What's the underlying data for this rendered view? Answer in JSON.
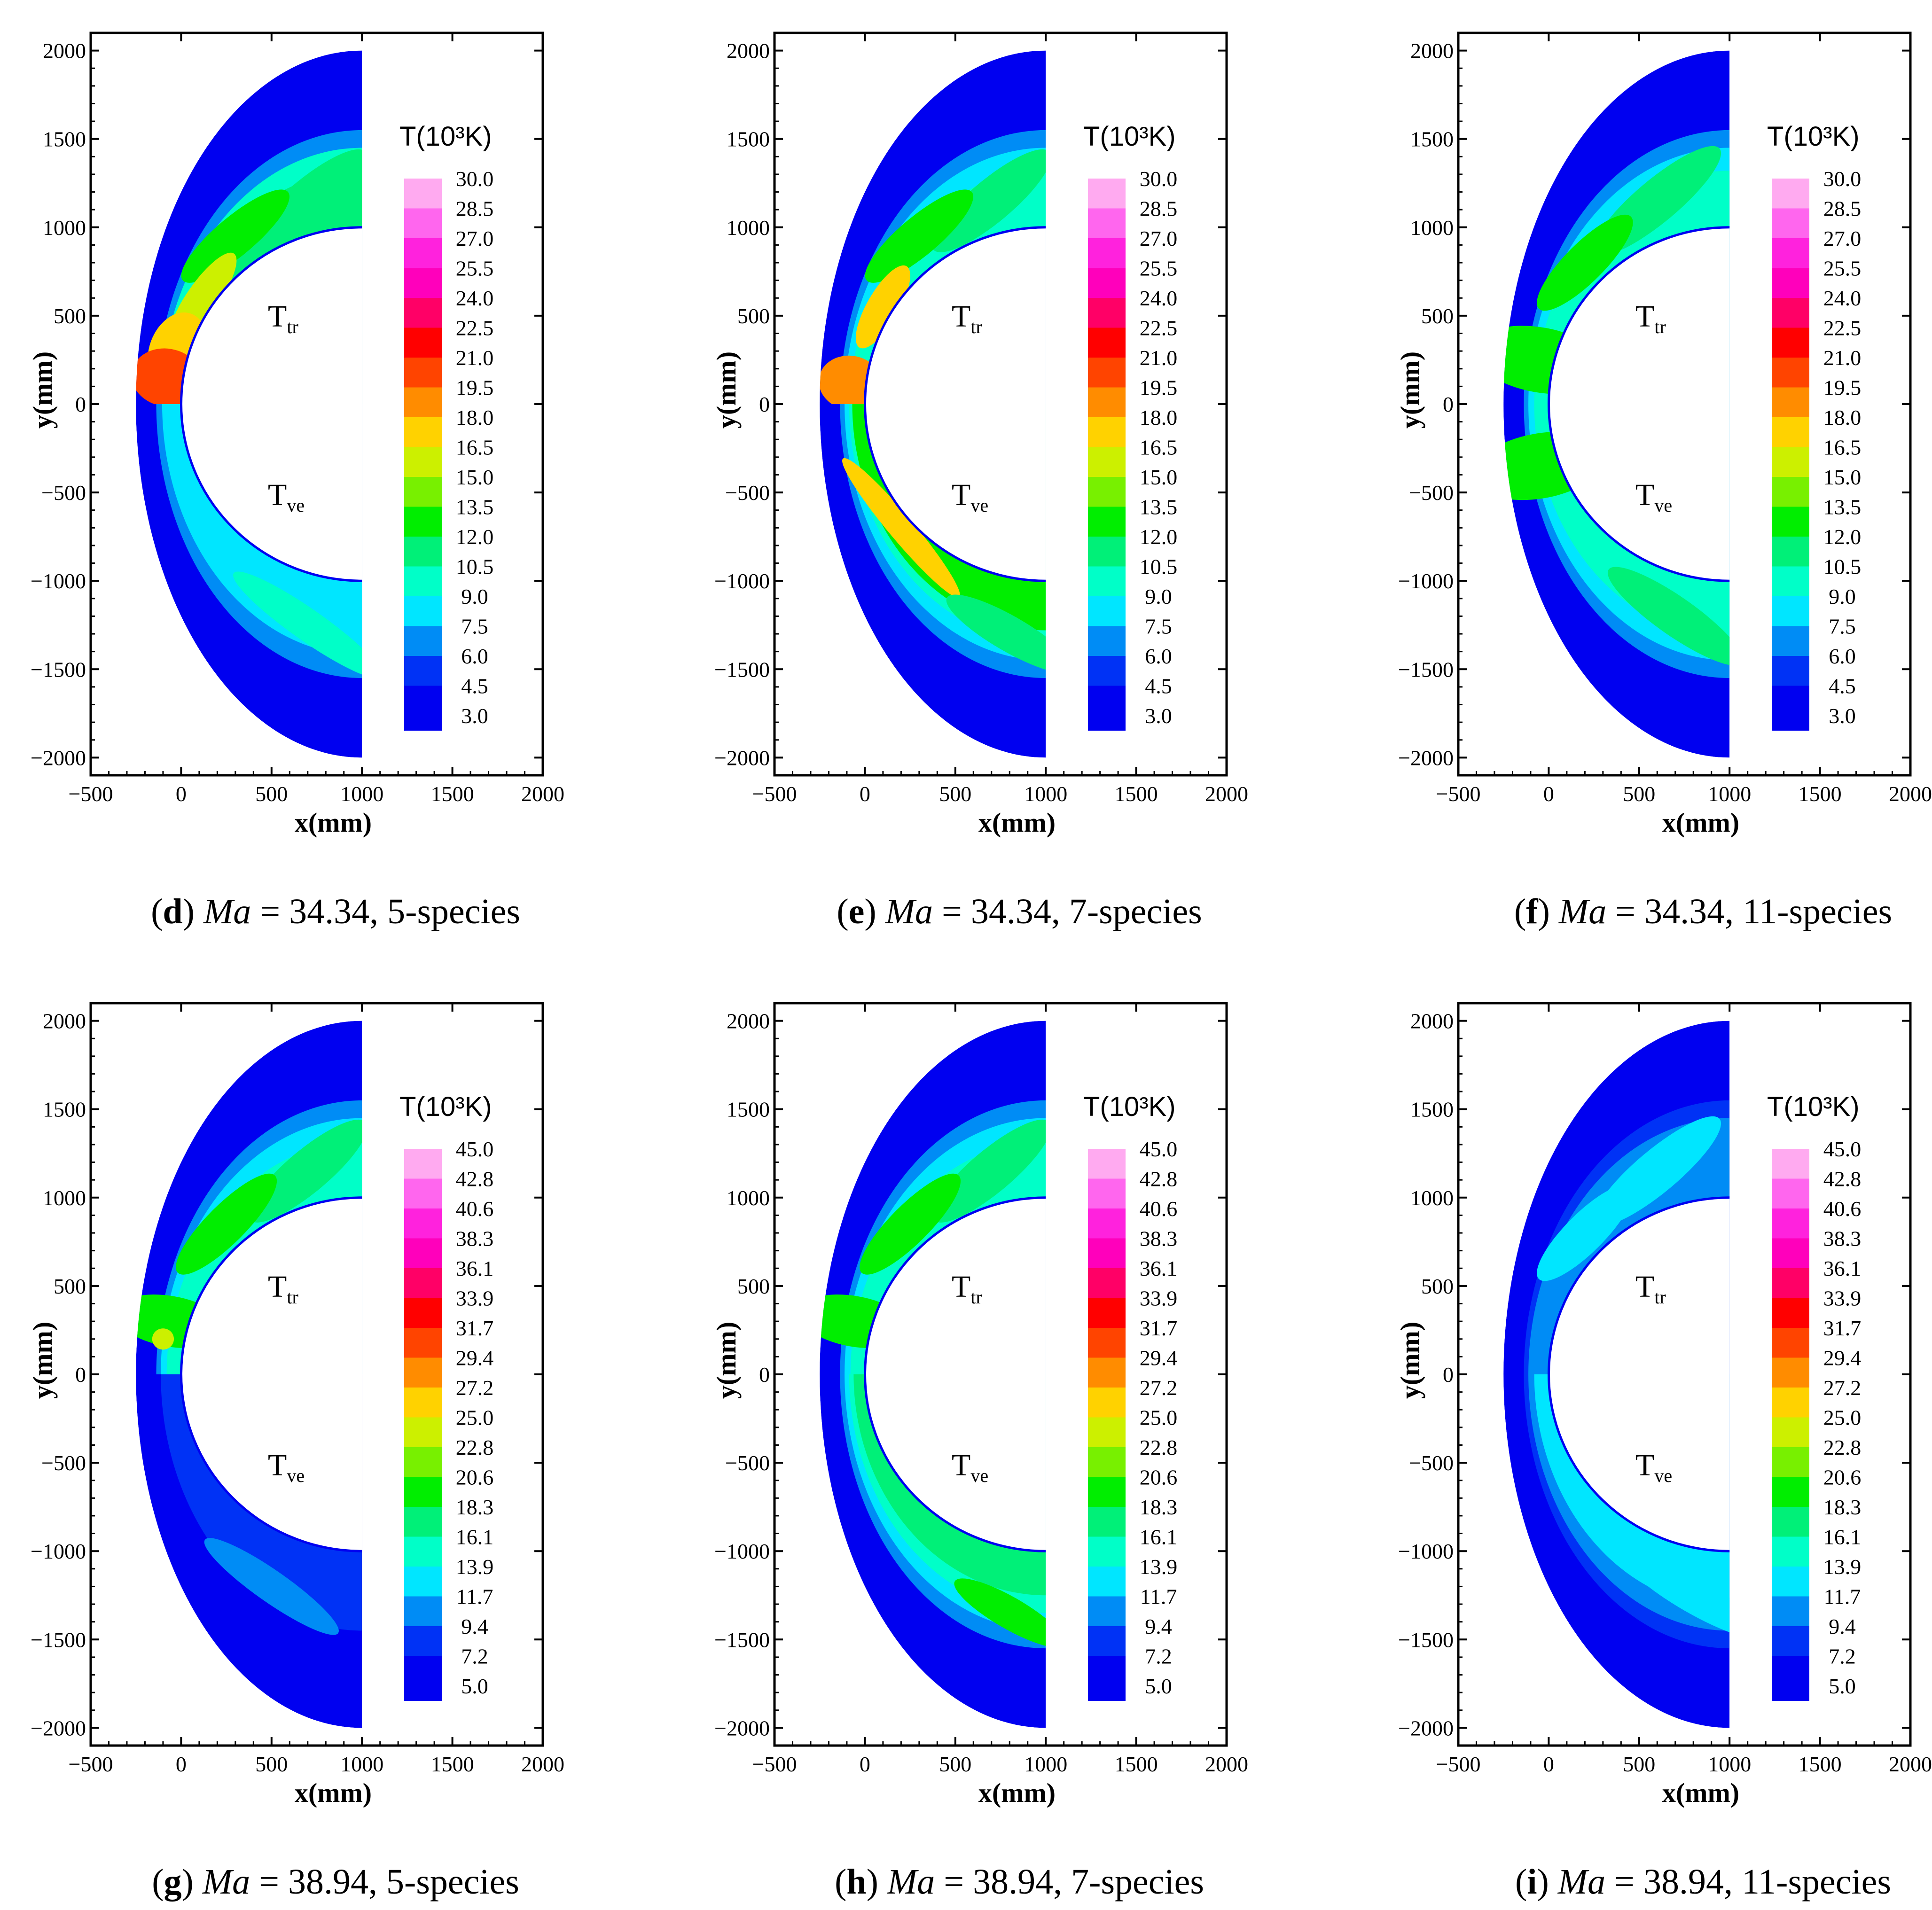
{
  "figure": {
    "shared": {
      "xlabel": "x(mm)",
      "ylabel": "y(mm)",
      "xticks": [
        -500,
        0,
        500,
        1000,
        1500,
        2000
      ],
      "yticks": [
        2000,
        1500,
        1000,
        500,
        0,
        -500,
        -1000,
        -1500,
        -2000
      ],
      "xlim": [
        -500,
        2000
      ],
      "ylim": [
        -2100,
        2100
      ],
      "legend_title": "T(10³K)",
      "upper_label": "T",
      "upper_sub": "tr",
      "lower_label": "T",
      "lower_sub": "ve"
    },
    "legend_colors": [
      "#0000f0",
      "#0032f5",
      "#008cf5",
      "#00e6ff",
      "#00ffc8",
      "#00f078",
      "#00ee00",
      "#78f000",
      "#ccf000",
      "#ffd200",
      "#ff8c00",
      "#ff4400",
      "#ff0000",
      "#ff0066",
      "#ff00bb",
      "#ff22dd",
      "#ff66ee",
      "#ffaaf0"
    ],
    "legend_sets": {
      "set1": [
        "30.0",
        "28.5",
        "27.0",
        "25.5",
        "24.0",
        "22.5",
        "21.0",
        "19.5",
        "18.0",
        "16.5",
        "15.0",
        "13.5",
        "12.0",
        "10.5",
        "9.0",
        "7.5",
        "6.0",
        "4.5",
        "3.0"
      ],
      "set2": [
        "45.0",
        "42.8",
        "40.6",
        "38.3",
        "36.1",
        "33.9",
        "31.7",
        "29.4",
        "27.2",
        "25.0",
        "22.8",
        "20.6",
        "18.3",
        "16.1",
        "13.9",
        "11.7",
        "9.4",
        "7.2",
        "5.0"
      ]
    }
  },
  "chart_data": [
    {
      "panel": "d",
      "type": "heatmap",
      "title": "Ma = 34.34, 5-species",
      "mach": 34.34,
      "species": 5,
      "legend": "set1",
      "quantity": "T(10³K)",
      "xlabel": "x(mm)",
      "ylabel": "y(mm)",
      "upper_field": "T_tr",
      "lower_field": "T_ve"
    },
    {
      "panel": "e",
      "type": "heatmap",
      "title": "Ma = 34.34, 7-species",
      "mach": 34.34,
      "species": 7,
      "legend": "set1",
      "quantity": "T(10³K)",
      "xlabel": "x(mm)",
      "ylabel": "y(mm)",
      "upper_field": "T_tr",
      "lower_field": "T_ve"
    },
    {
      "panel": "f",
      "type": "heatmap",
      "title": "Ma = 34.34, 11-species",
      "mach": 34.34,
      "species": 11,
      "legend": "set1",
      "quantity": "T(10³K)",
      "xlabel": "x(mm)",
      "ylabel": "y(mm)",
      "upper_field": "T_tr",
      "lower_field": "T_ve"
    },
    {
      "panel": "g",
      "type": "heatmap",
      "title": "Ma = 38.94, 5-species",
      "mach": 38.94,
      "species": 5,
      "legend": "set2",
      "quantity": "T(10³K)",
      "xlabel": "x(mm)",
      "ylabel": "y(mm)",
      "upper_field": "T_tr",
      "lower_field": "T_ve"
    },
    {
      "panel": "h",
      "type": "heatmap",
      "title": "Ma = 38.94, 7-species",
      "mach": 38.94,
      "species": 7,
      "legend": "set2",
      "quantity": "T(10³K)",
      "xlabel": "x(mm)",
      "ylabel": "y(mm)",
      "upper_field": "T_tr",
      "lower_field": "T_ve"
    },
    {
      "panel": "i",
      "type": "heatmap",
      "title": "Ma = 38.94, 11-species",
      "mach": 38.94,
      "species": 11,
      "legend": "set2",
      "quantity": "T(10³K)",
      "xlabel": "x(mm)",
      "ylabel": "y(mm)",
      "upper_field": "T_tr",
      "lower_field": "T_ve"
    }
  ],
  "panels": [
    {
      "letter": "d",
      "sep": " ",
      "ma_label": "Ma",
      "rest": " = 34.34, 5-species"
    },
    {
      "letter": "e",
      "sep": " ",
      "ma_label": "Ma",
      "rest": " = 34.34, 7-species"
    },
    {
      "letter": "f",
      "sep": " ",
      "ma_label": "Ma",
      "rest": " = 34.34, 11-species"
    },
    {
      "letter": "g",
      "sep": " ",
      "ma_label": "Ma",
      "rest": " = 38.94, 5-species"
    },
    {
      "letter": "h",
      "sep": " ",
      "ma_label": "Ma",
      "rest": " = 38.94, 7-species"
    },
    {
      "letter": "i",
      "sep": " ",
      "ma_label": "Ma",
      "rest": " = 38.94, 11-species"
    }
  ]
}
